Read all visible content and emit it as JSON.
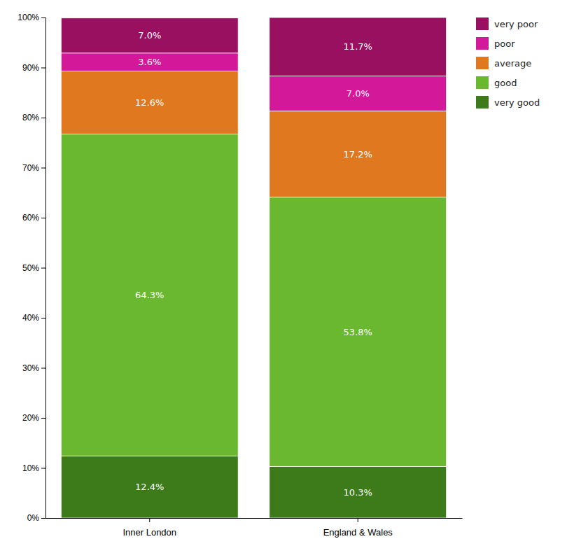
{
  "chart_data": {
    "type": "bar",
    "stacked": true,
    "data_labels": true,
    "grid": false,
    "legend": "right",
    "categories": [
      "Inner London",
      "England & Wales"
    ],
    "series": [
      {
        "name": "very good",
        "color": "#3d7a1a",
        "values": [
          12.4,
          10.3
        ],
        "value_labels": [
          "12.4%",
          "10.3%"
        ]
      },
      {
        "name": "good",
        "color": "#6ab830",
        "values": [
          64.3,
          53.8
        ],
        "value_labels": [
          "64.3%",
          "53.8%"
        ]
      },
      {
        "name": "average",
        "color": "#e07820",
        "values": [
          12.6,
          17.2
        ],
        "value_labels": [
          "12.6%",
          "17.2%"
        ]
      },
      {
        "name": "poor",
        "color": "#d4189a",
        "values": [
          3.6,
          7.0
        ],
        "value_labels": [
          "3.6%",
          "7.0%"
        ]
      },
      {
        "name": "very poor",
        "color": "#991060",
        "values": [
          7.0,
          11.7
        ],
        "value_labels": [
          "7.0%",
          "11.7%"
        ]
      }
    ],
    "ylim": [
      0,
      100
    ],
    "yticks": [
      {
        "value": 0,
        "label": "0%"
      },
      {
        "value": 10,
        "label": "10%"
      },
      {
        "value": 20,
        "label": "20%"
      },
      {
        "value": 30,
        "label": "30%"
      },
      {
        "value": 40,
        "label": "40%"
      },
      {
        "value": 50,
        "label": "50%"
      },
      {
        "value": 60,
        "label": "60%"
      },
      {
        "value": 70,
        "label": "70%"
      },
      {
        "value": 80,
        "label": "80%"
      },
      {
        "value": 90,
        "label": "90%"
      },
      {
        "value": 100,
        "label": "100%"
      }
    ]
  }
}
